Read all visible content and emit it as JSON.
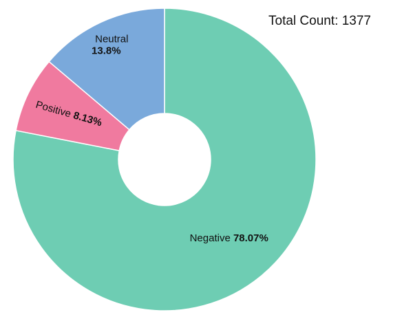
{
  "total": {
    "label": "Total Count:",
    "value": "1377"
  },
  "chart_data": {
    "type": "pie",
    "variant": "donut",
    "categories": [
      "Negative",
      "Positive",
      "Neutral"
    ],
    "values": [
      78.07,
      8.13,
      13.8
    ],
    "value_labels": [
      "78.07%",
      "8.13%",
      "13.8%"
    ],
    "colors": [
      "#6ecdb3",
      "#f07a9f",
      "#7aa9db"
    ],
    "start_angle": "12 o'clock",
    "direction": "clockwise",
    "legend": "none"
  }
}
